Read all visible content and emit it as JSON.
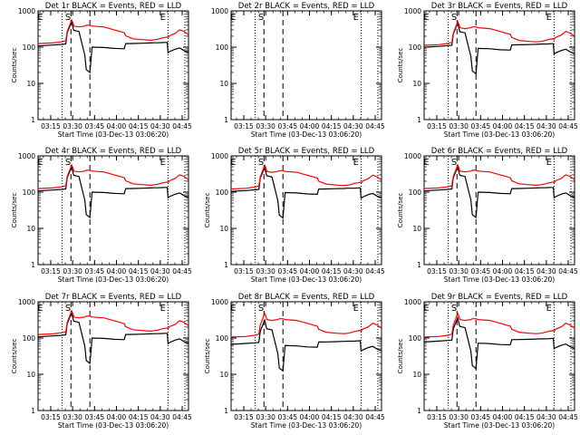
{
  "figure": {
    "panels": [
      {
        "title": "Det 1r BLACK = Events, RED = LLD",
        "xlabel": "Start Time (03-Dec-13 03:06:20)",
        "ylabel": "Counts/sec",
        "markers": [
          "E",
          "S",
          "E"
        ],
        "has_data": true
      },
      {
        "title": "Det 2r BLACK = Events, RED = LLD",
        "xlabel": "Start Time (03-Dec-13 03:06:20)",
        "ylabel": "",
        "markers": [
          "E",
          "S",
          "E"
        ],
        "has_data": false
      },
      {
        "title": "Det 3r BLACK = Events, RED = LLD",
        "xlabel": "Start Time (03-Dec-13 03:06:20)",
        "ylabel": "Counts/sec",
        "markers": [
          "E",
          "S",
          "E"
        ],
        "has_data": true
      },
      {
        "title": "Det 4r BLACK = Events, RED = LLD",
        "xlabel": "Start Time (03-Dec-13 03:06:20)",
        "ylabel": "Counts/sec",
        "markers": [
          "E",
          "S",
          "E"
        ],
        "has_data": true
      },
      {
        "title": "Det 5r BLACK = Events, RED = LLD",
        "xlabel": "Start Time (03-Dec-13 03:06:20)",
        "ylabel": "Counts/sec",
        "markers": [
          "E",
          "S",
          "E"
        ],
        "has_data": true
      },
      {
        "title": "Det 6r BLACK = Events, RED = LLD",
        "xlabel": "Start Time (03-Dec-13 03:06:20)",
        "ylabel": "Counts/sec",
        "markers": [
          "E",
          "S",
          "E"
        ],
        "has_data": true
      },
      {
        "title": "Det 7r BLACK = Events, RED = LLD",
        "xlabel": "Start Time (03-Dec-13 03:06:20)",
        "ylabel": "Counts/sec",
        "markers": [
          "E",
          "S",
          "E"
        ],
        "has_data": true
      },
      {
        "title": "Det 8r BLACK = Events, RED = LLD",
        "xlabel": "Start Time (03-Dec-13 03:06:20)",
        "ylabel": "Counts/sec",
        "markers": [
          "E",
          "S",
          "E"
        ],
        "has_data": true
      },
      {
        "title": "Det 9r BLACK = Events, RED = LLD",
        "xlabel": "Start Time (03-Dec-13 03:06:20)",
        "ylabel": "Counts/sec",
        "markers": [
          "E",
          "S",
          "E"
        ],
        "has_data": true
      }
    ]
  },
  "chart_data": {
    "type": "line",
    "layout": "3x3 grid",
    "yscale": "log",
    "ylim": [
      1,
      1000
    ],
    "yticks": [
      1,
      10,
      100,
      1000
    ],
    "ytick_labels": [
      "1",
      "10",
      "100",
      "1000"
    ],
    "xlim_minutes": [
      0,
      103
    ],
    "xticks_minutes": [
      8.67,
      23.67,
      38.67,
      53.67,
      68.67,
      83.67,
      98.67
    ],
    "xtick_labels": [
      "03:15",
      "03:30",
      "03:45",
      "04:00",
      "04:15",
      "04:30",
      "04:45"
    ],
    "line_colors": {
      "events": "#000000",
      "lld": "#ff0000"
    },
    "dotted_vlines_minutes": [
      16.5,
      89.0,
      100.5
    ],
    "dashed_vlines_minutes": [
      22.5,
      35.5
    ],
    "series": [
      {
        "name": "Events",
        "x": [
          0,
          10,
          16,
          19,
          20,
          23,
          24,
          24.5,
          28,
          32,
          33,
          35.5,
          37,
          45,
          52,
          59,
          60,
          65,
          72,
          77,
          80,
          82,
          85,
          87,
          88.5,
          89,
          90,
          94,
          97,
          100,
          103
        ],
        "y": [
          108,
          114,
          119,
          122,
          250,
          500,
          330,
          290,
          270,
          60,
          24,
          20,
          100,
          98,
          92,
          90,
          125,
          126,
          128,
          130,
          132,
          132,
          133,
          135,
          135,
          70,
          75,
          88,
          95,
          80,
          72
        ]
      },
      {
        "name": "LLD",
        "x": [
          0,
          10,
          16,
          19,
          20,
          23,
          24,
          24.5,
          28,
          32,
          33,
          35.5,
          37,
          45,
          52,
          59,
          60,
          65,
          72,
          77,
          80,
          82,
          85,
          87,
          88.5,
          89,
          90,
          94,
          97,
          100,
          103
        ],
        "y": [
          125,
          130,
          140,
          150,
          270,
          560,
          450,
          380,
          360,
          380,
          400,
          400,
          380,
          360,
          300,
          250,
          205,
          170,
          160,
          155,
          160,
          165,
          180,
          185,
          190,
          180,
          205,
          240,
          300,
          270,
          220
        ]
      }
    ]
  }
}
